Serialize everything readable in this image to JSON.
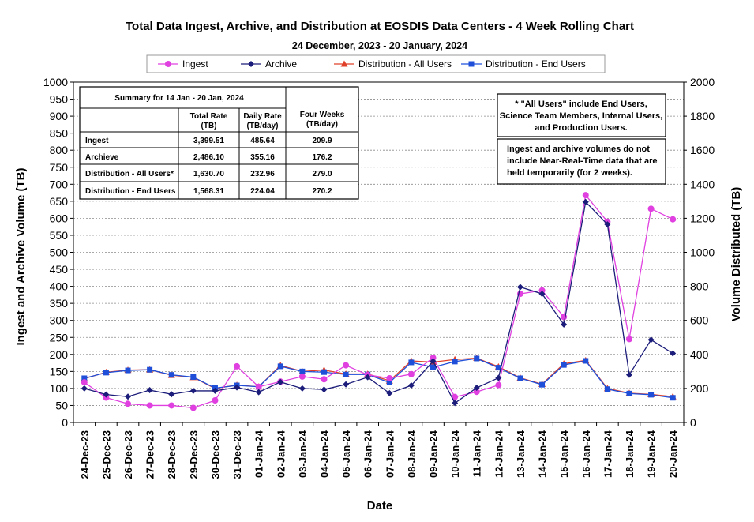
{
  "chart_data": {
    "type": "line",
    "title": "Total Data Ingest, Archive, and  Distribution at EOSDIS Data Centers - 4 Week Rolling Chart",
    "subtitle": "24  December,  2023  -  20  January, 2024",
    "xlabel": "Date",
    "ylabel_left": "Ingest and Archive Volume (TB)",
    "ylabel_right": "Volume Distributed (TB)",
    "ylim_left": [
      0,
      1000
    ],
    "ylim_right": [
      0,
      2000
    ],
    "left_ticks": [
      0,
      50,
      100,
      150,
      200,
      250,
      300,
      350,
      400,
      450,
      500,
      550,
      600,
      650,
      700,
      750,
      800,
      850,
      900,
      950,
      1000
    ],
    "right_ticks": [
      0,
      200,
      400,
      600,
      800,
      1000,
      1200,
      1400,
      1600,
      1800,
      2000
    ],
    "grid": true,
    "legend_position": "top",
    "categories": [
      "24-Dec-23",
      "25-Dec-23",
      "26-Dec-23",
      "27-Dec-23",
      "28-Dec-23",
      "29-Dec-23",
      "30-Dec-23",
      "31-Dec-23",
      "01-Jan-24",
      "02-Jan-24",
      "03-Jan-24",
      "04-Jan-24",
      "05-Jan-24",
      "06-Jan-24",
      "07-Jan-24",
      "08-Jan-24",
      "09-Jan-24",
      "10-Jan-24",
      "11-Jan-24",
      "12-Jan-24",
      "13-Jan-24",
      "14-Jan-24",
      "15-Jan-24",
      "16-Jan-24",
      "17-Jan-24",
      "18-Jan-24",
      "19-Jan-24",
      "20-Jan-24"
    ],
    "series": [
      {
        "name": "Ingest",
        "axis": "left",
        "color": "#e040e0",
        "marker": "circle",
        "values": [
          118,
          73,
          55,
          50,
          50,
          43,
          65,
          165,
          105,
          120,
          135,
          127,
          168,
          140,
          130,
          142,
          190,
          75,
          90,
          110,
          378,
          388,
          310,
          668,
          590,
          245,
          628,
          597
        ]
      },
      {
        "name": "Archive",
        "axis": "left",
        "color": "#1c1c7a",
        "marker": "diamond",
        "values": [
          100,
          82,
          76,
          95,
          83,
          93,
          93,
          103,
          89,
          119,
          100,
          97,
          112,
          133,
          86,
          109,
          180,
          57,
          102,
          131,
          398,
          378,
          288,
          648,
          582,
          140,
          243,
          203
        ]
      },
      {
        "name": "Distribution - All Users",
        "axis": "right",
        "color": "#e0402a",
        "marker": "triangle",
        "values": [
          258,
          295,
          308,
          310,
          278,
          265,
          200,
          220,
          210,
          335,
          300,
          308,
          285,
          285,
          245,
          362,
          355,
          370,
          378,
          328,
          262,
          225,
          345,
          365,
          200,
          172,
          165,
          152
        ]
      },
      {
        "name": "Distribution - End Users",
        "axis": "right",
        "color": "#1f4fd9",
        "marker": "square",
        "values": [
          260,
          293,
          306,
          310,
          280,
          267,
          202,
          218,
          210,
          330,
          300,
          296,
          282,
          282,
          235,
          353,
          325,
          358,
          376,
          322,
          260,
          222,
          338,
          362,
          196,
          170,
          163,
          145
        ]
      }
    ],
    "summary_table": {
      "title": "Summary  for  14  Jan   -  20  Jan,  2024",
      "headers": [
        "",
        "Total Rate\n(TB)",
        "Daily Rate\n(TB/day)",
        "Four Weeks\n(TB/day)"
      ],
      "rows": [
        [
          "Ingest",
          "3,399.51",
          "485.64",
          "209.9"
        ],
        [
          "Archieve",
          "2,486.10",
          "355.16",
          "176.2"
        ],
        [
          "Distribution - All Users*",
          "1,630.70",
          "232.96",
          "279.0"
        ],
        [
          "Distribution - End Users",
          "1,568.31",
          "224.04",
          "270.2"
        ]
      ]
    },
    "notes": [
      [
        "* \"All Users\" include End Users,",
        "Science Team Members,  Internal Users,",
        "and Production Users."
      ],
      [
        "Ingest and archive volumes do not",
        "include Near-Real-Time data that are",
        "held temporarily (for 2 weeks)."
      ]
    ]
  }
}
